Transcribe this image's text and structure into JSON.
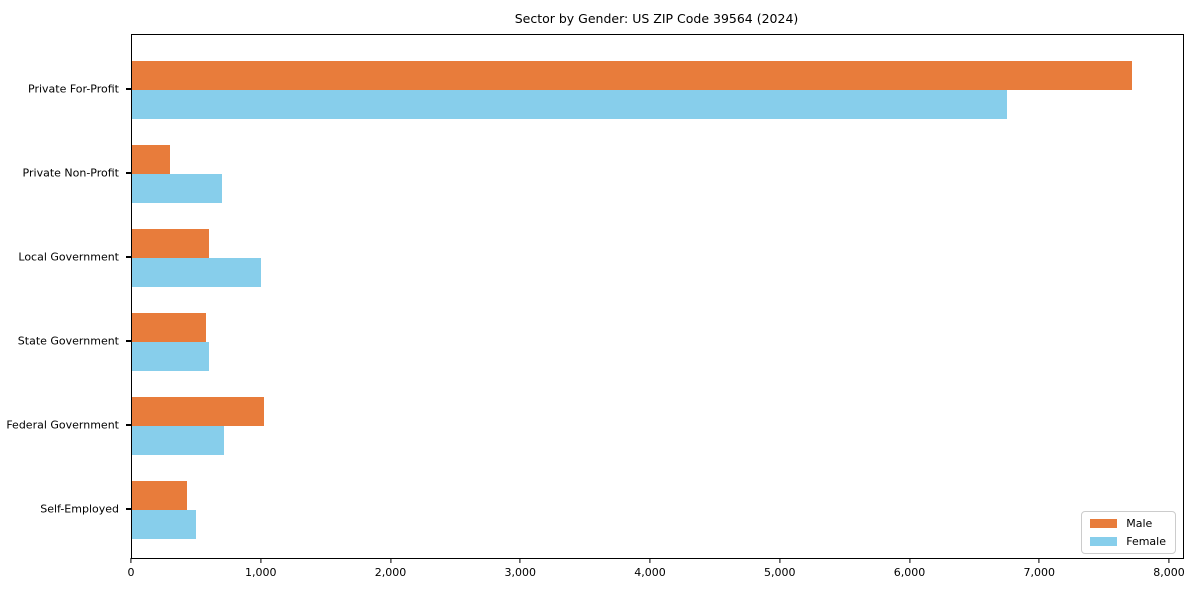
{
  "chart_data": {
    "type": "bar",
    "orientation": "horizontal",
    "title": "Sector by Gender: US ZIP Code 39564 (2024)",
    "categories": [
      "Private For-Profit",
      "Private Non-Profit",
      "Local Government",
      "State Government",
      "Federal Government",
      "Self-Employed"
    ],
    "series": [
      {
        "name": "Male",
        "color": "#e87c3b",
        "values": [
          7710,
          290,
          595,
          570,
          1015,
          425
        ]
      },
      {
        "name": "Female",
        "color": "#87ceeb",
        "values": [
          6740,
          695,
          990,
          595,
          705,
          490
        ]
      }
    ],
    "xlabel": "",
    "ylabel": "",
    "xlim": [
      0,
      8100
    ],
    "xticks": [
      0,
      1000,
      2000,
      3000,
      4000,
      5000,
      6000,
      7000,
      8000
    ],
    "xtick_labels": [
      "0",
      "1,000",
      "2,000",
      "3,000",
      "4,000",
      "5,000",
      "6,000",
      "7,000",
      "8,000"
    ],
    "grid": false,
    "legend": {
      "position": "lower right",
      "entries": [
        "Male",
        "Female"
      ]
    }
  },
  "colors": {
    "male": "#e87c3b",
    "female": "#87ceeb",
    "axis": "#000000",
    "legend_border": "#cccccc",
    "background": "#ffffff"
  }
}
